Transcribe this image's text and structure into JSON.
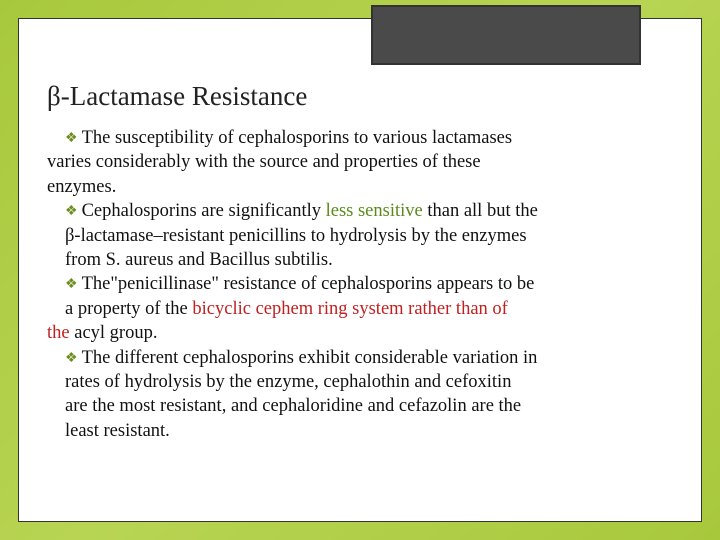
{
  "colors": {
    "background_gradient_start": "#a8c83c",
    "background_gradient_mid": "#b8d453",
    "slide_bg": "#ffffff",
    "corner_box": "#4a4a4a",
    "bullet_glyph": "#6b8e1e",
    "text": "#111111",
    "highlight_green": "#5a8a1a",
    "highlight_red": "#c02020"
  },
  "typography": {
    "title_fontsize": 27,
    "body_fontsize": 18.5,
    "font_family": "Times New Roman"
  },
  "title": "β-Lactamase Resistance",
  "bullet_glyph": "❖",
  "bullets": {
    "b1a": "The",
    "b1b": " susceptibility of cephalosporins to various lactamases",
    "b1c": "varies considerably with the source and properties of these",
    "b1d": "enzymes.",
    "b2a": "Cephalosporins are significantly ",
    "b2a_green": "less sensitive",
    "b2a_end": " than all but the",
    "b2b": "β-lactamase–resistant penicillins to hydrolysis by the enzymes",
    "b2c": "from S. aureus and Bacillus subtilis.",
    "b3a": "The\"penicillinase\" resistance of cephalosporins appears to be",
    "b3b": "a property of the ",
    "b3b_red": "bicyclic cephem ring system rather than of",
    "b3c_red": "the ",
    "b3c": "acyl group.",
    "b4a": "The",
    "b4a_end": " different cephalosporins exhibit considerable variation in",
    "b4b": "rates of hydrolysis by the enzyme, cephalothin and cefoxitin",
    "b4c": "are the most resistant, and cephaloridine and cefazolin are the",
    "b4d": "least resistant."
  }
}
